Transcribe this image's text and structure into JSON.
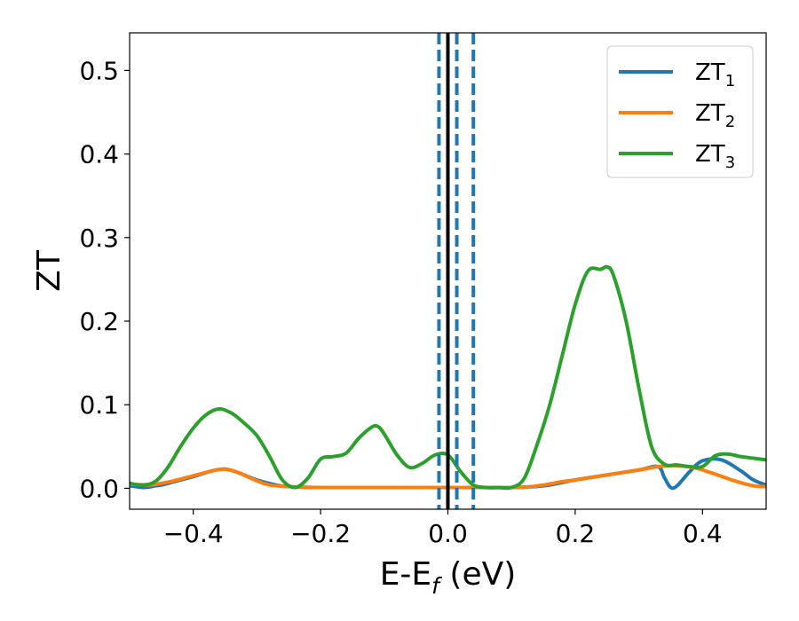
{
  "chart_data": {
    "type": "line",
    "xlabel": "E-E",
    "xlabel_sub": "f",
    "xlabel_unit": " (eV)",
    "ylabel": "ZT",
    "xlim": [
      -0.5,
      0.5
    ],
    "ylim": [
      -0.025,
      0.545
    ],
    "xticks": [
      -0.4,
      -0.2,
      0.0,
      0.2,
      0.4
    ],
    "xtick_labels": [
      "−0.4",
      "−0.2",
      "0.0",
      "0.2",
      "0.4"
    ],
    "yticks": [
      0.0,
      0.1,
      0.2,
      0.3,
      0.4,
      0.5
    ],
    "ytick_labels": [
      "0.0",
      "0.1",
      "0.2",
      "0.3",
      "0.4",
      "0.5"
    ],
    "grid": false,
    "legend_position": "top-right",
    "vertical_lines": [
      {
        "x": 0.0,
        "style": "solid",
        "color": "#000000"
      },
      {
        "x": -0.014,
        "style": "dashed",
        "color": "#1f77b4"
      },
      {
        "x": 0.014,
        "style": "dashed",
        "color": "#1f77b4"
      },
      {
        "x": 0.04,
        "style": "dashed",
        "color": "#1f77b4"
      }
    ],
    "series": [
      {
        "name": "ZT",
        "name_sub": "1",
        "color": "#1f77b4",
        "x": [
          -0.5,
          -0.49,
          -0.48,
          -0.47,
          -0.46,
          -0.45,
          -0.43,
          -0.4,
          -0.37,
          -0.35,
          -0.33,
          -0.3,
          -0.27,
          -0.25,
          -0.2,
          -0.1,
          0.0,
          0.05,
          0.1,
          0.15,
          0.2,
          0.25,
          0.3,
          0.33,
          0.34,
          0.35,
          0.36,
          0.38,
          0.4,
          0.43,
          0.46,
          0.48,
          0.5
        ],
        "y": [
          0.003,
          0.002,
          0.001,
          0.0015,
          0.003,
          0.004,
          0.008,
          0.014,
          0.021,
          0.023,
          0.019,
          0.01,
          0.004,
          0.002,
          0.001,
          0.001,
          0.001,
          0.001,
          0.001,
          0.003,
          0.01,
          0.016,
          0.022,
          0.026,
          0.013,
          0.001,
          0.003,
          0.02,
          0.033,
          0.034,
          0.021,
          0.01,
          0.004
        ]
      },
      {
        "name": "ZT",
        "name_sub": "2",
        "color": "#ff7f0e",
        "x": [
          -0.5,
          -0.47,
          -0.45,
          -0.43,
          -0.4,
          -0.37,
          -0.35,
          -0.33,
          -0.3,
          -0.28,
          -0.25,
          -0.2,
          -0.1,
          0.0,
          0.05,
          0.1,
          0.13,
          0.15,
          0.18,
          0.2,
          0.25,
          0.3,
          0.33,
          0.36,
          0.39,
          0.42,
          0.45,
          0.48,
          0.5
        ],
        "y": [
          0.005,
          0.004,
          0.006,
          0.009,
          0.015,
          0.021,
          0.023,
          0.019,
          0.009,
          0.004,
          0.002,
          0.001,
          0.001,
          0.001,
          0.001,
          0.001,
          0.002,
          0.004,
          0.008,
          0.01,
          0.016,
          0.022,
          0.026,
          0.027,
          0.024,
          0.017,
          0.009,
          0.003,
          0.002
        ]
      },
      {
        "name": "ZT",
        "name_sub": "3",
        "color": "#2ca02c",
        "x": [
          -0.5,
          -0.48,
          -0.46,
          -0.44,
          -0.42,
          -0.4,
          -0.38,
          -0.36,
          -0.34,
          -0.32,
          -0.3,
          -0.28,
          -0.26,
          -0.24,
          -0.22,
          -0.2,
          -0.18,
          -0.16,
          -0.14,
          -0.12,
          -0.11,
          -0.1,
          -0.08,
          -0.06,
          -0.04,
          -0.02,
          0.0,
          0.02,
          0.04,
          0.06,
          0.08,
          0.1,
          0.12,
          0.14,
          0.16,
          0.18,
          0.2,
          0.22,
          0.24,
          0.25,
          0.26,
          0.28,
          0.3,
          0.32,
          0.34,
          0.36,
          0.38,
          0.4,
          0.42,
          0.44,
          0.46,
          0.48,
          0.5
        ],
        "y": [
          0.006,
          0.004,
          0.008,
          0.025,
          0.05,
          0.072,
          0.088,
          0.095,
          0.09,
          0.078,
          0.063,
          0.038,
          0.01,
          0.001,
          0.012,
          0.035,
          0.038,
          0.042,
          0.06,
          0.073,
          0.074,
          0.065,
          0.04,
          0.025,
          0.03,
          0.04,
          0.04,
          0.02,
          0.004,
          0.001,
          0.001,
          0.001,
          0.012,
          0.052,
          0.1,
          0.16,
          0.22,
          0.26,
          0.262,
          0.265,
          0.255,
          0.2,
          0.12,
          0.05,
          0.029,
          0.028,
          0.026,
          0.026,
          0.039,
          0.041,
          0.038,
          0.036,
          0.034
        ]
      }
    ]
  }
}
